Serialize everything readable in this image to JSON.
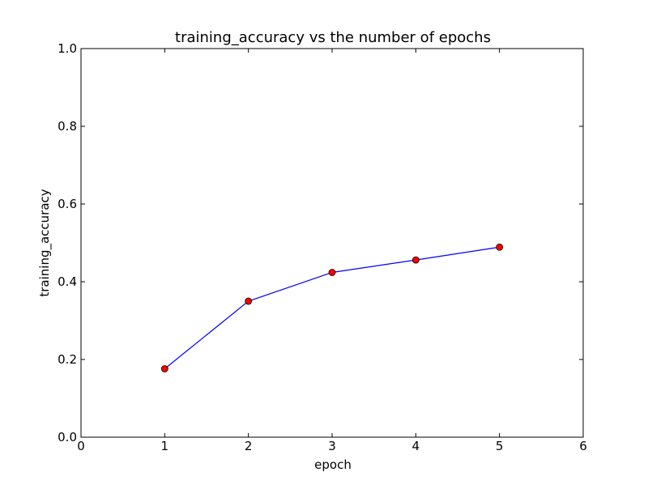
{
  "chart_data": {
    "type": "line",
    "title": "training_accuracy  vs the number of epochs",
    "xlabel": "epoch",
    "ylabel": "training_accuracy",
    "xlim": [
      0,
      6
    ],
    "ylim": [
      0.0,
      1.0
    ],
    "xticks": [
      0,
      1,
      2,
      3,
      4,
      5,
      6
    ],
    "xtick_labels": [
      "0",
      "1",
      "2",
      "3",
      "4",
      "5",
      "6"
    ],
    "yticks": [
      0.0,
      0.2,
      0.4,
      0.6,
      0.8,
      1.0
    ],
    "ytick_labels": [
      "0.0",
      "0.2",
      "0.4",
      "0.6",
      "0.8",
      "1.0"
    ],
    "grid": false,
    "series": [
      {
        "x": [
          1,
          2,
          3,
          4,
          5
        ],
        "y": [
          0.176,
          0.35,
          0.424,
          0.456,
          0.489
        ],
        "line_color": "#0000ff",
        "marker": "circle",
        "marker_color": "#ff0000"
      }
    ]
  }
}
